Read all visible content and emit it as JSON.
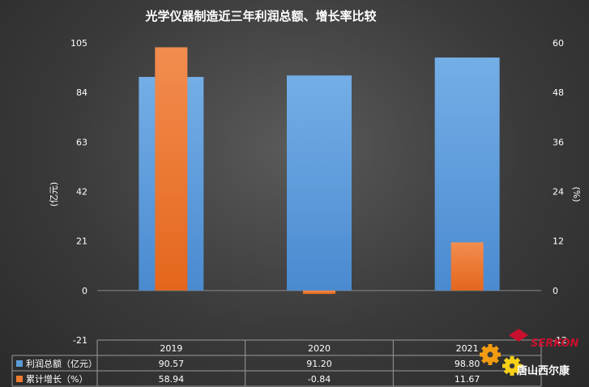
{
  "chart_data": {
    "type": "bar",
    "title": "光学仪器制造近三年利润总额、增长率比较",
    "categories": [
      "2019",
      "2020",
      "2021"
    ],
    "series": [
      {
        "name": "利润总额（亿元）",
        "values": [
          90.57,
          91.2,
          98.8
        ],
        "axis": "left",
        "color": "#5b9bd5",
        "value_labels": [
          "90.57",
          "91.20",
          "98.80"
        ]
      },
      {
        "name": "累计增长（%）",
        "values": [
          58.94,
          -0.84,
          11.67
        ],
        "axis": "right",
        "color": "#ed7d31",
        "value_labels": [
          "58.94",
          "-0.84",
          "11.67"
        ]
      }
    ],
    "y_left": {
      "label": "(亿元)",
      "ylim": [
        -21,
        105
      ],
      "ticks": [
        "105",
        "84",
        "63",
        "42",
        "21",
        "0",
        "-21"
      ],
      "tick_values": [
        105,
        84,
        63,
        42,
        21,
        0,
        -21
      ]
    },
    "y_right": {
      "label": "(%)",
      "ylim": [
        -12,
        60
      ],
      "ticks": [
        "60",
        "48",
        "36",
        "24",
        "12",
        "0",
        "-12"
      ],
      "tick_values": [
        60,
        48,
        36,
        24,
        12,
        0,
        -12
      ]
    },
    "grid": false,
    "legend": "data-table"
  },
  "watermark": {
    "brand": "SERKON",
    "cn_text": "唐山西尔康",
    "colors": {
      "red": "#c8102e",
      "orange": "#f39c12",
      "yellow": "#f7d117"
    }
  }
}
